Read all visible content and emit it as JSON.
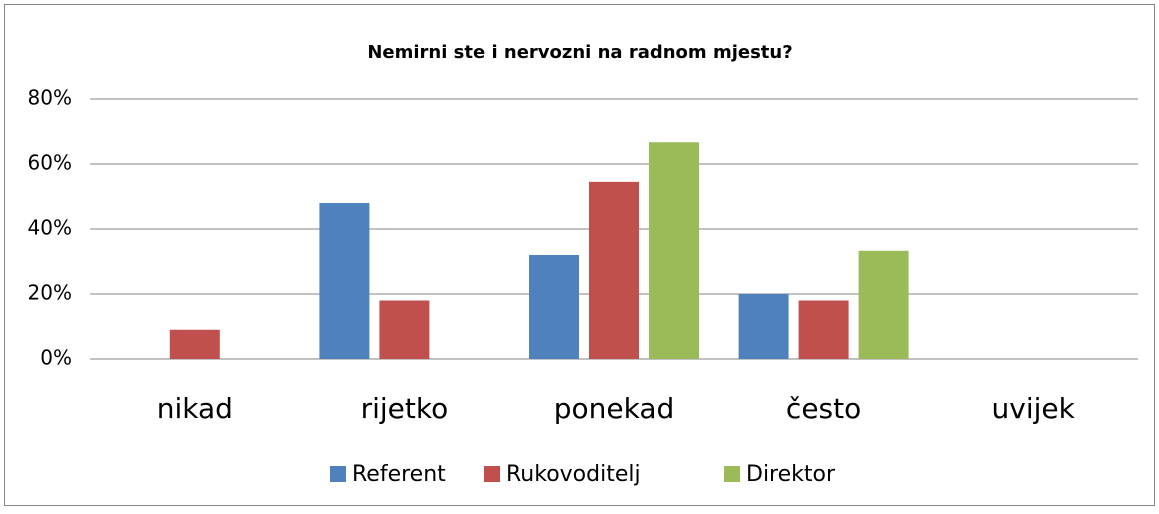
{
  "chart_data": {
    "type": "bar",
    "title": "Nemirni ste i nervozni na radnom mjestu?",
    "categories": [
      "nikad",
      "rijetko",
      "ponekad",
      "često",
      "uvijek"
    ],
    "series": [
      {
        "name": "Referent",
        "color": "#4f81bd",
        "values": [
          0,
          48,
          32,
          20,
          0
        ]
      },
      {
        "name": "Rukovoditelj",
        "color": "#c0504d",
        "values": [
          9,
          18,
          54.5,
          18,
          0
        ]
      },
      {
        "name": "Direktor",
        "color": "#9bbb59",
        "values": [
          0,
          0,
          66.7,
          33.3,
          0
        ]
      }
    ],
    "ylim": [
      0,
      80
    ],
    "yticks": [
      {
        "value": 0,
        "label": "0%"
      },
      {
        "value": 20,
        "label": "20%"
      },
      {
        "value": 40,
        "label": "40%"
      },
      {
        "value": 60,
        "label": "60%"
      },
      {
        "value": 80,
        "label": "80%"
      }
    ],
    "grid": true,
    "legend": "bottom"
  }
}
